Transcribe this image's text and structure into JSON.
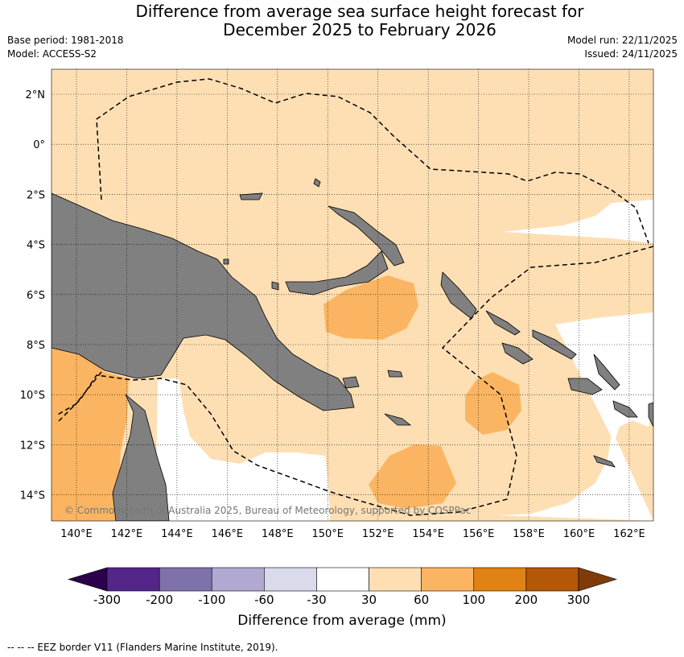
{
  "title_line1": "Difference from average sea surface height forecast for",
  "title_line2": "December 2025 to February 2026",
  "base_period": "Base period: 1981-2018",
  "model": "Model: ACCESS-S2",
  "model_run": "Model run: 22/11/2025",
  "issued": "Issued: 24/11/2025",
  "map": {
    "lat_labels": [
      "2°N",
      "0°",
      "2°S",
      "4°S",
      "6°S",
      "8°S",
      "10°S",
      "12°S",
      "14°S"
    ],
    "lon_labels": [
      "140°E",
      "142°E",
      "144°E",
      "146°E",
      "148°E",
      "150°E",
      "152°E",
      "154°E",
      "156°E",
      "158°E",
      "160°E",
      "162°E"
    ],
    "copyright": "© Commonwealth of Australia 2025, Bureau of Meteorology, supported by COSPPac",
    "colors": {
      "land": "#808080",
      "band_30_60": "#fedfb4",
      "band_60_100": "#fbb562",
      "ocean_neutral": "#ffffff"
    }
  },
  "colorbar": {
    "ticks": [
      "-300",
      "-200",
      "-100",
      "-60",
      "-30",
      "30",
      "60",
      "100",
      "200",
      "300"
    ],
    "colors": [
      "#552689",
      "#7f72ab",
      "#b1a9d1",
      "#d9daeb",
      "#ffffff",
      "#fedfb4",
      "#fbb562",
      "#e08214",
      "#b35806"
    ],
    "under_color": "#2d004b",
    "over_color": "#7f3b08",
    "label": "Difference from average (mm)"
  },
  "footer": "--  --  -- EEZ border V11 (Flanders Marine Institute, 2019)."
}
